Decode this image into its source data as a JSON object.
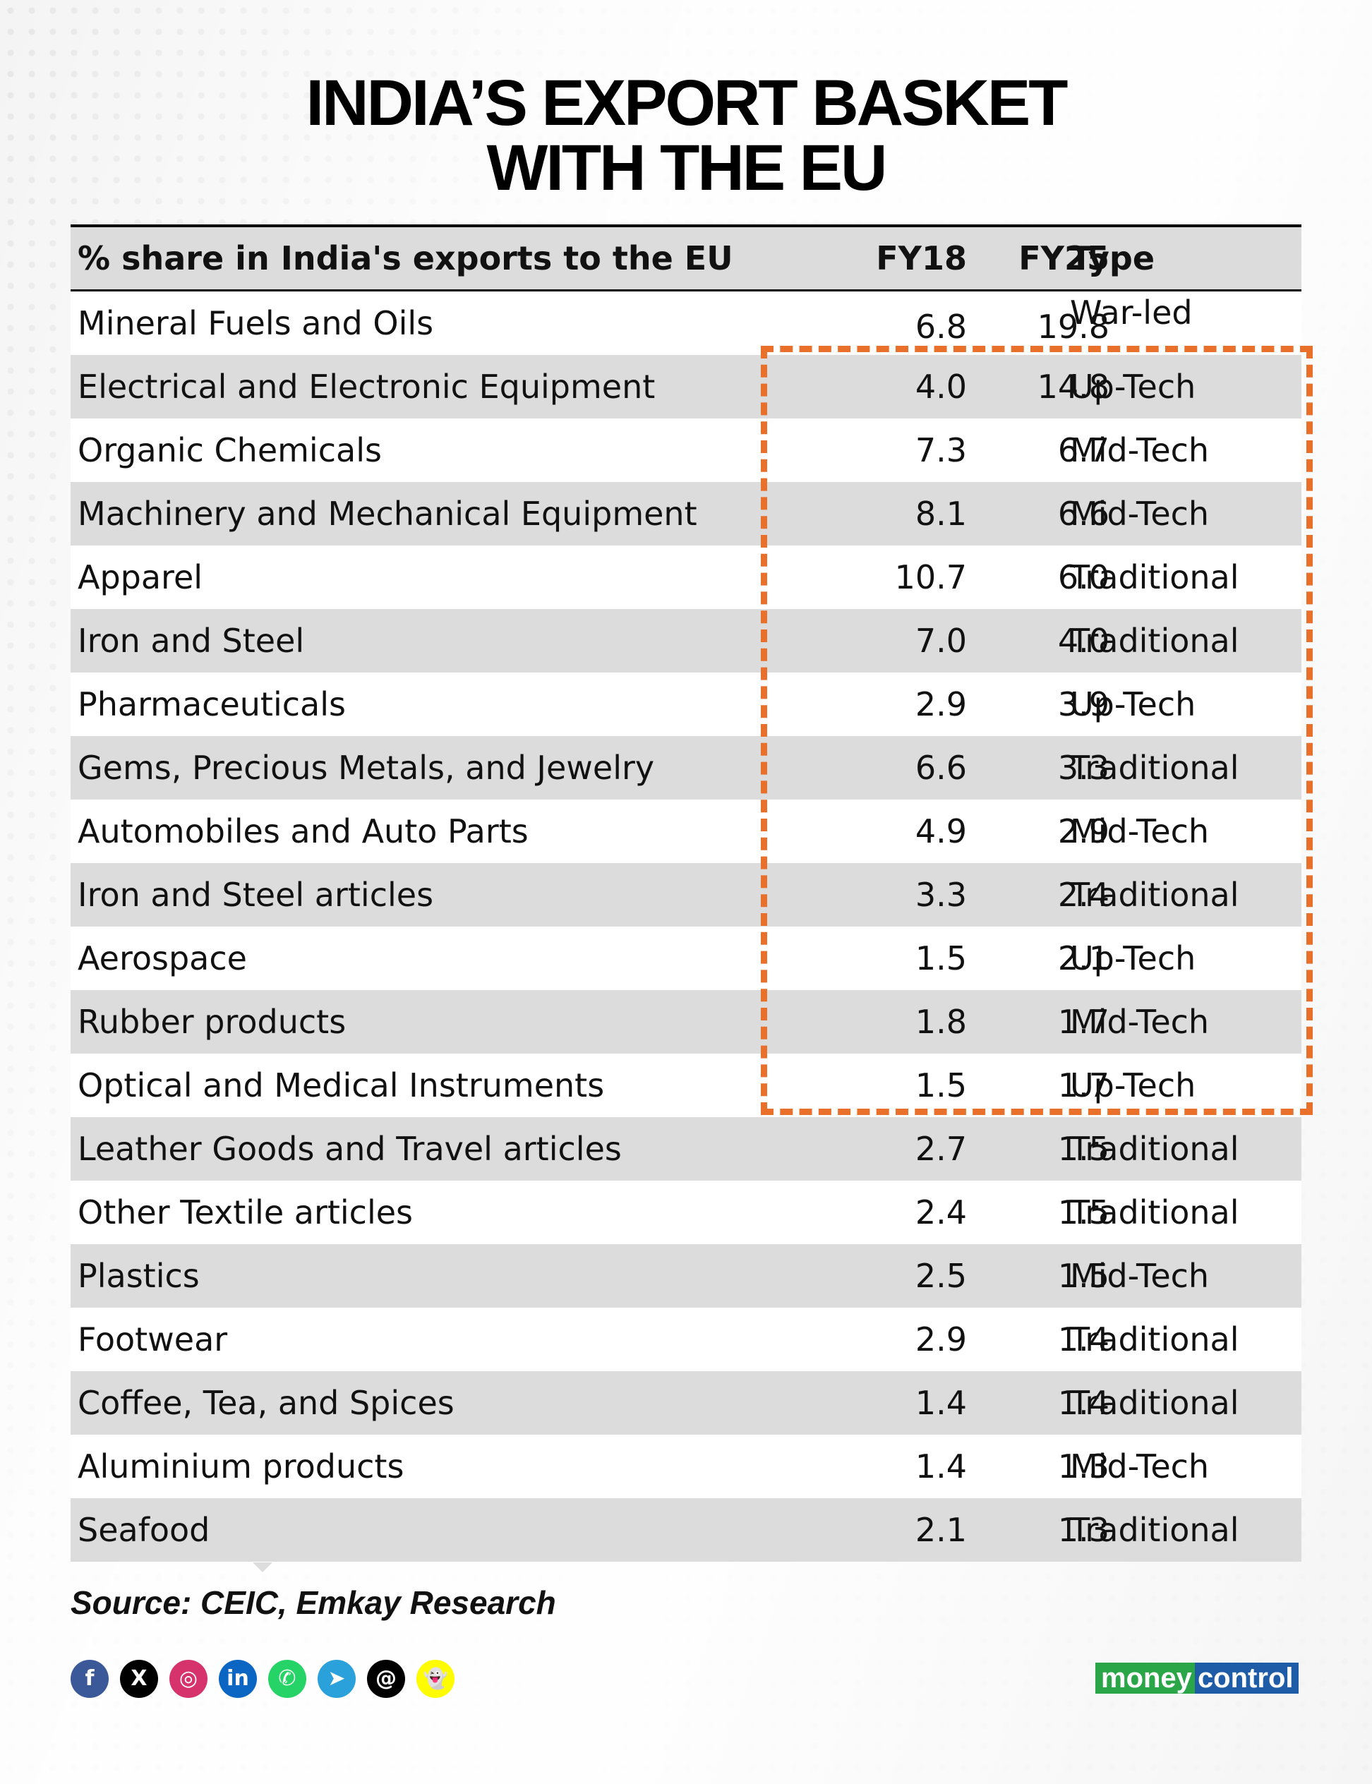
{
  "title": {
    "line1": "INDIA’S EXPORT BASKET",
    "line2": "WITH THE EU"
  },
  "chart_data": {
    "type": "table",
    "columns": [
      "% share in India's exports to the EU",
      "FY18",
      "FY25",
      "Type"
    ],
    "rows": [
      {
        "label": "Mineral Fuels and Oils",
        "fy18": "6.8",
        "fy25": "19.8",
        "type": "War-led"
      },
      {
        "label": "Electrical and Electronic Equipment",
        "fy18": "4.0",
        "fy25": "14.8",
        "type": "Up-Tech"
      },
      {
        "label": "Organic Chemicals",
        "fy18": "7.3",
        "fy25": "6.7",
        "type": "Mid-Tech"
      },
      {
        "label": "Machinery and Mechanical Equipment",
        "fy18": "8.1",
        "fy25": "6.6",
        "type": "Mid-Tech"
      },
      {
        "label": "Apparel",
        "fy18": "10.7",
        "fy25": "6.0",
        "type": "Traditional"
      },
      {
        "label": "Iron and Steel",
        "fy18": "7.0",
        "fy25": "4.0",
        "type": "Traditional"
      },
      {
        "label": "Pharmaceuticals",
        "fy18": "2.9",
        "fy25": "3.9",
        "type": "Up-Tech"
      },
      {
        "label": "Gems, Precious Metals, and Jewelry",
        "fy18": "6.6",
        "fy25": "3.3",
        "type": "Traditional"
      },
      {
        "label": "Automobiles and Auto Parts",
        "fy18": "4.9",
        "fy25": "2.9",
        "type": "Mid-Tech"
      },
      {
        "label": "Iron and Steel articles",
        "fy18": "3.3",
        "fy25": "2.4",
        "type": "Traditional"
      },
      {
        "label": "Aerospace",
        "fy18": "1.5",
        "fy25": "2.1",
        "type": "Up-Tech"
      },
      {
        "label": "Rubber products",
        "fy18": "1.8",
        "fy25": "1.7",
        "type": "Mid-Tech"
      },
      {
        "label": "Optical and Medical Instruments",
        "fy18": "1.5",
        "fy25": "1.7",
        "type": "Up-Tech"
      },
      {
        "label": "Leather Goods and Travel articles",
        "fy18": "2.7",
        "fy25": "1.5",
        "type": "Traditional"
      },
      {
        "label": "Other Textile articles",
        "fy18": "2.4",
        "fy25": "1.5",
        "type": "Traditional"
      },
      {
        "label": "Plastics",
        "fy18": "2.5",
        "fy25": "1.5",
        "type": "Mid-Tech"
      },
      {
        "label": "Footwear",
        "fy18": "2.9",
        "fy25": "1.4",
        "type": "Traditional"
      },
      {
        "label": "Coffee, Tea, and Spices",
        "fy18": "1.4",
        "fy25": "1.4",
        "type": "Traditional"
      },
      {
        "label": "Aluminium products",
        "fy18": "1.4",
        "fy25": "1.3",
        "type": "Mid-Tech"
      },
      {
        "label": "Seafood",
        "fy18": "2.1",
        "fy25": "1.3",
        "type": "Traditional"
      }
    ],
    "highlight_color": "#e8702a"
  },
  "source": "Source: CEIC, Emkay Research",
  "social_icons": [
    {
      "name": "facebook-icon",
      "glyph": "f",
      "color": "#3b5998"
    },
    {
      "name": "x-icon",
      "glyph": "X",
      "color": "#000000"
    },
    {
      "name": "instagram-icon",
      "glyph": "◎",
      "color": "#d6336c"
    },
    {
      "name": "linkedin-icon",
      "glyph": "in",
      "color": "#0a66c2"
    },
    {
      "name": "whatsapp-icon",
      "glyph": "✆",
      "color": "#25d366"
    },
    {
      "name": "telegram-icon",
      "glyph": "➤",
      "color": "#2aa1da"
    },
    {
      "name": "threads-icon",
      "glyph": "@",
      "color": "#000000"
    },
    {
      "name": "snapchat-icon",
      "glyph": "👻",
      "color": "#fffc00"
    }
  ],
  "logo": {
    "part1": "money",
    "part2": "control"
  }
}
